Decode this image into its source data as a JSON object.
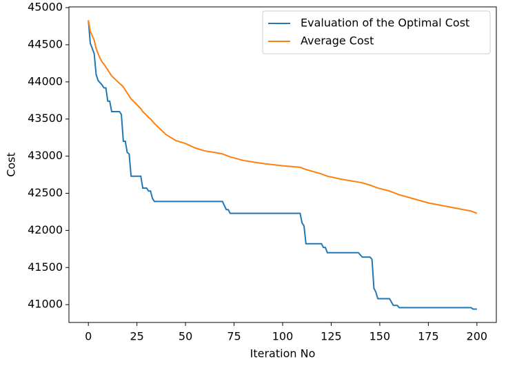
{
  "chart_data": {
    "type": "line",
    "x_label": "Iteration No",
    "y_label": "Cost",
    "x": [
      0,
      1,
      2,
      3,
      4,
      5,
      6,
      7,
      8,
      9,
      10,
      11,
      12,
      16,
      17,
      18,
      19,
      20,
      21,
      22,
      27,
      28,
      30,
      31,
      32,
      33,
      34,
      40,
      45,
      50,
      55,
      60,
      65,
      69,
      71,
      72,
      73,
      80,
      90,
      100,
      109,
      110,
      111,
      112,
      120,
      121,
      122,
      123,
      130,
      139,
      141,
      145,
      146,
      147,
      148,
      149,
      155,
      157,
      159,
      160,
      175,
      185,
      197,
      198,
      200
    ],
    "series": [
      {
        "name": "Evaluation of the Optimal Cost",
        "color": "#1f77b4",
        "values": [
          44830,
          44520,
          44450,
          44380,
          44100,
          44020,
          43990,
          43960,
          43920,
          43920,
          43740,
          43740,
          43600,
          43600,
          43560,
          43200,
          43200,
          43050,
          43030,
          42730,
          42730,
          42570,
          42570,
          42530,
          42530,
          42430,
          42390,
          42390,
          42390,
          42390,
          42390,
          42390,
          42390,
          42390,
          42280,
          42280,
          42230,
          42230,
          42230,
          42230,
          42230,
          42100,
          42060,
          41820,
          41820,
          41770,
          41770,
          41700,
          41700,
          41700,
          41640,
          41640,
          41610,
          41220,
          41170,
          41080,
          41080,
          40990,
          40990,
          40960,
          40960,
          40960,
          40960,
          40940,
          40940
        ]
      },
      {
        "name": "Average Cost",
        "color": "#ff7f0e",
        "values": [
          44830,
          44680,
          44620,
          44560,
          44450,
          44380,
          44320,
          44270,
          44240,
          44200,
          44160,
          44120,
          44080,
          43980,
          43960,
          43930,
          43890,
          43850,
          43810,
          43770,
          43640,
          43600,
          43550,
          43520,
          43500,
          43470,
          43440,
          43290,
          43210,
          43170,
          43110,
          43070,
          43050,
          43030,
          43010,
          43000,
          42990,
          42940,
          42900,
          42870,
          42850,
          42840,
          42830,
          42820,
          42760,
          42750,
          42740,
          42730,
          42690,
          42650,
          42640,
          42610,
          42600,
          42590,
          42580,
          42570,
          42530,
          42510,
          42490,
          42480,
          42370,
          42320,
          42260,
          42250,
          42230
        ]
      }
    ],
    "xlim": [
      -10,
      210
    ],
    "ylim": [
      40760,
      45010
    ],
    "xticks": [
      0,
      25,
      50,
      75,
      100,
      125,
      150,
      175,
      200
    ],
    "yticks": [
      41000,
      41500,
      42000,
      42500,
      43000,
      43500,
      44000,
      44500,
      45000
    ],
    "legend": "upper right"
  }
}
